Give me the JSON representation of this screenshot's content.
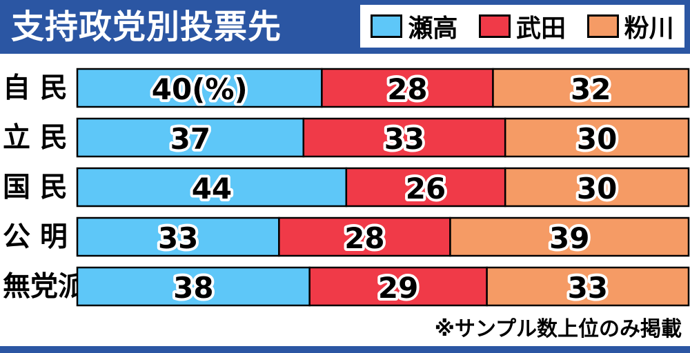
{
  "chart_data": {
    "type": "bar",
    "orientation": "horizontal",
    "stacked": true,
    "title": "支持政党別投票先",
    "categories": [
      "自民",
      "立民",
      "国民",
      "公明",
      "無党派"
    ],
    "category_display": [
      "自 民",
      "立 民",
      "国 民",
      "公 明",
      "無党派"
    ],
    "series": [
      {
        "name": "瀬高",
        "values": [
          40,
          37,
          44,
          33,
          38
        ],
        "color": "#5ec7f8"
      },
      {
        "name": "武田",
        "values": [
          28,
          33,
          26,
          28,
          29
        ],
        "color": "#f03a48"
      },
      {
        "name": "粉川",
        "values": [
          32,
          30,
          30,
          39,
          33
        ],
        "color": "#f59b65"
      }
    ],
    "first_label_suffix": "(%)",
    "xlim": [
      0,
      100
    ],
    "legend_position": "top-right",
    "footnote": "※サンプル数上位のみ掲載"
  }
}
